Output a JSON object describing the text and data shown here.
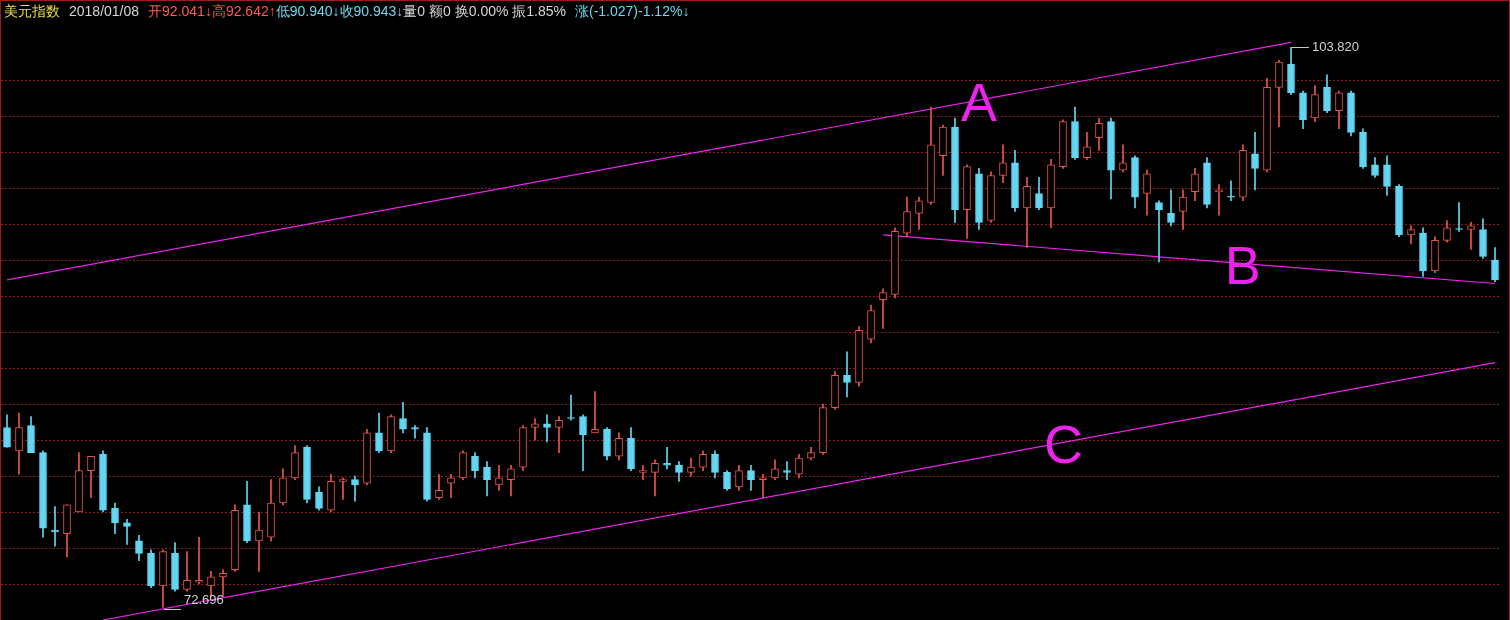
{
  "chart_data": {
    "type": "candlestick",
    "title": "美元指数",
    "annotations": [
      "2018/01/08",
      "开92.041↓高92.642↑",
      "低90.940↓收90.943↓",
      "量0 额0 换0.00% 振1.85%",
      "涨(-1.027)-1.12%↓",
      "103.820",
      "72.696"
    ],
    "categories": [
      null,
      null,
      null,
      null,
      null,
      null,
      null,
      null,
      null,
      null,
      null,
      null,
      null,
      null,
      null,
      null,
      null,
      null,
      null,
      null,
      null,
      null,
      null,
      null,
      null,
      null,
      null,
      null,
      null,
      null,
      null,
      null,
      null,
      null,
      null,
      null,
      null,
      null,
      null,
      null,
      null,
      null,
      null,
      null,
      null,
      null,
      null,
      null,
      null,
      null,
      null,
      null,
      null,
      null,
      null,
      null,
      null,
      null,
      null,
      null,
      null,
      null,
      null,
      null,
      null,
      null,
      null,
      null,
      null,
      null,
      null,
      null,
      null,
      null,
      null,
      null,
      null,
      null,
      null,
      null,
      null,
      null,
      null,
      null,
      null,
      null,
      null,
      null,
      null,
      null,
      null,
      null,
      null,
      null,
      null,
      null,
      null,
      null,
      null,
      null,
      null,
      null,
      null,
      null,
      null,
      null,
      null,
      null,
      null,
      null,
      null,
      null,
      null,
      null,
      null,
      null,
      null,
      null,
      null,
      null,
      null,
      null,
      null,
      null,
      null
    ],
    "ohlc": [
      [
        82.7,
        83.4,
        81.6,
        81.6
      ],
      [
        81.4,
        83.5,
        80.1,
        82.7
      ],
      [
        82.8,
        83.3,
        81.3,
        81.3
      ],
      [
        81.3,
        81.4,
        76.6,
        77.1
      ],
      [
        77.0,
        78.3,
        76.1,
        76.9
      ],
      [
        76.8,
        78.4,
        75.5,
        78.4
      ],
      [
        78.0,
        81.3,
        78.0,
        80.3
      ],
      [
        80.3,
        81.1,
        78.8,
        81.1
      ],
      [
        81.2,
        81.4,
        78.0,
        78.1
      ],
      [
        78.2,
        78.5,
        76.8,
        77.4
      ],
      [
        77.4,
        77.6,
        76.2,
        77.2
      ],
      [
        76.4,
        76.7,
        75.3,
        75.7
      ],
      [
        75.7,
        75.9,
        73.8,
        73.9
      ],
      [
        73.9,
        75.9,
        72.696,
        75.8
      ],
      [
        75.7,
        76.3,
        73.6,
        73.7
      ],
      [
        73.7,
        75.8,
        73.6,
        74.2
      ],
      [
        74.1,
        76.6,
        74.0,
        74.2
      ],
      [
        73.9,
        74.7,
        73.3,
        74.4
      ],
      [
        74.4,
        74.8,
        73.3,
        74.6
      ],
      [
        74.8,
        78.4,
        74.7,
        78.1
      ],
      [
        78.4,
        79.7,
        76.3,
        76.4
      ],
      [
        76.4,
        78.0,
        74.7,
        77.0
      ],
      [
        76.6,
        79.8,
        76.4,
        78.5
      ],
      [
        78.5,
        80.4,
        78.4,
        79.9
      ],
      [
        79.9,
        81.7,
        79.8,
        81.3
      ],
      [
        81.6,
        81.7,
        78.5,
        78.7
      ],
      [
        79.1,
        79.4,
        78.1,
        78.2
      ],
      [
        78.1,
        80.1,
        78.0,
        79.7
      ],
      [
        79.7,
        79.9,
        78.7,
        79.8
      ],
      [
        79.8,
        80.0,
        78.6,
        79.5
      ],
      [
        79.6,
        82.6,
        79.5,
        82.4
      ],
      [
        82.4,
        83.5,
        81.3,
        81.4
      ],
      [
        81.4,
        83.4,
        81.3,
        83.3
      ],
      [
        83.2,
        84.1,
        82.4,
        82.6
      ],
      [
        82.7,
        82.8,
        82.1,
        82.6
      ],
      [
        82.4,
        82.7,
        78.6,
        78.7
      ],
      [
        78.8,
        80.1,
        78.7,
        79.2
      ],
      [
        79.6,
        80.1,
        78.8,
        79.9
      ],
      [
        79.9,
        81.4,
        79.8,
        81.3
      ],
      [
        81.1,
        81.3,
        79.9,
        80.3
      ],
      [
        80.5,
        80.8,
        78.9,
        79.8
      ],
      [
        79.5,
        80.6,
        79.2,
        79.9
      ],
      [
        79.8,
        80.6,
        78.9,
        80.4
      ],
      [
        80.5,
        82.8,
        80.3,
        82.7
      ],
      [
        82.7,
        83.2,
        82.0,
        82.9
      ],
      [
        82.9,
        83.4,
        81.9,
        82.7
      ],
      [
        82.7,
        83.3,
        81.3,
        83.1
      ],
      [
        83.2,
        84.5,
        83.1,
        83.2
      ],
      [
        83.3,
        83.4,
        80.3,
        82.3
      ],
      [
        82.4,
        84.7,
        82.4,
        82.6
      ],
      [
        82.6,
        82.7,
        80.9,
        81.1
      ],
      [
        81.1,
        82.4,
        80.9,
        82.1
      ],
      [
        82.1,
        82.7,
        80.3,
        80.4
      ],
      [
        80.2,
        80.6,
        79.8,
        80.3
      ],
      [
        80.2,
        80.9,
        78.9,
        80.7
      ],
      [
        80.7,
        81.6,
        80.4,
        80.6
      ],
      [
        80.6,
        80.8,
        79.7,
        80.2
      ],
      [
        80.2,
        81.0,
        80.0,
        80.5
      ],
      [
        80.5,
        81.4,
        80.3,
        81.2
      ],
      [
        81.2,
        81.4,
        79.9,
        80.2
      ],
      [
        80.2,
        80.3,
        79.2,
        79.3
      ],
      [
        79.4,
        80.6,
        79.2,
        80.3
      ],
      [
        80.3,
        80.6,
        79.2,
        79.8
      ],
      [
        79.8,
        80.1,
        78.8,
        79.9
      ],
      [
        79.9,
        80.9,
        79.8,
        80.4
      ],
      [
        80.3,
        80.8,
        79.8,
        80.2
      ],
      [
        80.1,
        81.2,
        79.9,
        81.0
      ],
      [
        81.0,
        81.6,
        80.9,
        81.3
      ],
      [
        81.3,
        84.0,
        81.2,
        83.8
      ],
      [
        83.8,
        85.8,
        83.7,
        85.6
      ],
      [
        85.6,
        86.9,
        84.4,
        85.2
      ],
      [
        85.2,
        88.3,
        85.0,
        88.1
      ],
      [
        87.6,
        89.5,
        87.4,
        89.2
      ],
      [
        89.8,
        90.4,
        88.2,
        90.2
      ],
      [
        90.1,
        93.8,
        89.9,
        93.6
      ],
      [
        93.5,
        95.5,
        93.3,
        94.7
      ],
      [
        94.6,
        95.5,
        93.7,
        95.3
      ],
      [
        95.2,
        100.5,
        95.1,
        98.4
      ],
      [
        97.8,
        99.5,
        96.7,
        99.4
      ],
      [
        99.4,
        99.9,
        94.1,
        94.8
      ],
      [
        94.8,
        97.3,
        93.2,
        97.2
      ],
      [
        96.8,
        97.1,
        93.7,
        94.1
      ],
      [
        94.2,
        96.9,
        94.1,
        96.7
      ],
      [
        96.7,
        98.4,
        96.3,
        97.4
      ],
      [
        97.4,
        98.1,
        94.7,
        94.9
      ],
      [
        94.9,
        96.6,
        92.7,
        96.1
      ],
      [
        95.7,
        96.6,
        94.8,
        94.9
      ],
      [
        94.9,
        97.6,
        93.8,
        97.3
      ],
      [
        97.2,
        99.8,
        97.1,
        99.7
      ],
      [
        99.7,
        100.5,
        97.6,
        97.7
      ],
      [
        97.7,
        99.1,
        97.6,
        98.3
      ],
      [
        98.8,
        99.9,
        98.1,
        99.6
      ],
      [
        99.7,
        99.9,
        95.4,
        97.0
      ],
      [
        97.0,
        98.4,
        96.9,
        97.4
      ],
      [
        97.7,
        97.8,
        94.9,
        95.5
      ],
      [
        95.7,
        97.0,
        94.5,
        96.8
      ],
      [
        95.2,
        95.3,
        91.9,
        94.8
      ],
      [
        94.6,
        95.9,
        93.9,
        94.1
      ],
      [
        94.7,
        95.9,
        93.7,
        95.5
      ],
      [
        95.8,
        97.1,
        95.3,
        96.8
      ],
      [
        97.4,
        97.7,
        94.9,
        95.1
      ],
      [
        95.8,
        96.2,
        94.5,
        95.9
      ],
      [
        95.5,
        96.4,
        95.3,
        95.5
      ],
      [
        95.5,
        98.4,
        95.3,
        98.1
      ],
      [
        97.9,
        99.1,
        95.9,
        97.1
      ],
      [
        97.0,
        102.1,
        96.9,
        101.6
      ],
      [
        101.6,
        103.1,
        99.4,
        103.0
      ],
      [
        102.9,
        103.82,
        101.2,
        101.3
      ],
      [
        101.3,
        101.4,
        99.3,
        99.8
      ],
      [
        99.9,
        101.7,
        99.7,
        101.2
      ],
      [
        101.6,
        102.3,
        100.2,
        100.3
      ],
      [
        100.3,
        101.4,
        99.3,
        101.3
      ],
      [
        101.3,
        101.4,
        98.9,
        99.1
      ],
      [
        99.1,
        99.3,
        97.1,
        97.2
      ],
      [
        97.3,
        97.7,
        96.6,
        96.7
      ],
      [
        97.3,
        97.8,
        95.6,
        96.1
      ],
      [
        96.1,
        96.2,
        93.3,
        93.4
      ],
      [
        93.4,
        93.9,
        92.9,
        93.7
      ],
      [
        93.5,
        93.8,
        91.1,
        91.4
      ],
      [
        91.4,
        93.3,
        91.3,
        93.1
      ],
      [
        93.1,
        94.2,
        93.0,
        93.8
      ],
      [
        93.7,
        95.2,
        93.6,
        93.7
      ],
      [
        93.7,
        94.1,
        92.6,
        93.9
      ],
      [
        93.7,
        94.3,
        92.1,
        92.2
      ],
      [
        92.0,
        92.7,
        90.8,
        90.9
      ]
    ],
    "colors": [
      "#62d6f2",
      "#e8554e",
      "#62d6f2",
      "#62d6f2",
      "#62d6f2",
      "#e8554e",
      "#e8554e",
      "#e8554e",
      "#62d6f2",
      "#62d6f2",
      "#62d6f2",
      "#62d6f2",
      "#62d6f2",
      "#e8554e",
      "#62d6f2",
      "#e8554e",
      "#e8554e",
      "#e8554e",
      "#e8554e",
      "#e8554e",
      "#62d6f2",
      "#e8554e",
      "#e8554e",
      "#e8554e",
      "#e8554e",
      "#62d6f2",
      "#62d6f2",
      "#e8554e",
      "#e8554e",
      "#62d6f2",
      "#e8554e",
      "#62d6f2",
      "#e8554e",
      "#62d6f2",
      "#62d6f2",
      "#62d6f2",
      "#e8554e",
      "#e8554e",
      "#e8554e",
      "#62d6f2",
      "#62d6f2",
      "#e8554e",
      "#e8554e",
      "#e8554e",
      "#e8554e",
      "#62d6f2",
      "#e8554e",
      "#62d6f2",
      "#62d6f2",
      "#e8554e",
      "#62d6f2",
      "#e8554e",
      "#62d6f2",
      "#e8554e",
      "#e8554e",
      "#62d6f2",
      "#62d6f2",
      "#e8554e",
      "#e8554e",
      "#62d6f2",
      "#62d6f2",
      "#e8554e",
      "#62d6f2",
      "#e8554e",
      "#e8554e",
      "#62d6f2",
      "#e8554e",
      "#e8554e",
      "#e8554e",
      "#e8554e",
      "#62d6f2",
      "#e8554e",
      "#e8554e",
      "#e8554e",
      "#e8554e",
      "#e8554e",
      "#e8554e",
      "#e8554e",
      "#e8554e",
      "#62d6f2",
      "#e8554e",
      "#62d6f2",
      "#e8554e",
      "#e8554e",
      "#62d6f2",
      "#e8554e",
      "#62d6f2",
      "#e8554e",
      "#e8554e",
      "#62d6f2",
      "#e8554e",
      "#e8554e",
      "#62d6f2",
      "#e8554e",
      "#62d6f2",
      "#e8554e",
      "#62d6f2",
      "#62d6f2",
      "#e8554e",
      "#e8554e",
      "#62d6f2",
      "#e8554e",
      "#62d6f2",
      "#e8554e",
      "#62d6f2",
      "#e8554e",
      "#e8554e",
      "#62d6f2",
      "#62d6f2",
      "#e8554e",
      "#62d6f2",
      "#e8554e",
      "#62d6f2",
      "#62d6f2",
      "#62d6f2",
      "#62d6f2",
      "#62d6f2",
      "#e8554e",
      "#62d6f2",
      "#e8554e",
      "#e8554e",
      "#62d6f2",
      "#e8554e",
      "#62d6f2",
      "#62d6f2"
    ],
    "series": [
      {
        "type": "line",
        "name": "A",
        "color": "#ee22ee",
        "values": [
          90.9,
          null,
          null,
          null,
          null,
          null,
          null,
          null,
          null,
          null,
          null,
          null,
          null,
          null,
          null,
          null,
          null,
          null,
          null,
          null,
          null,
          null,
          null,
          null,
          null,
          null,
          null,
          null,
          null,
          null,
          null,
          null,
          null,
          null,
          null,
          null,
          null,
          null,
          null,
          null,
          null,
          null,
          null,
          null,
          null,
          null,
          null,
          null,
          null,
          null,
          null,
          null,
          null,
          null,
          null,
          null,
          null,
          null,
          null,
          null,
          null,
          null,
          null,
          null,
          null,
          null,
          null,
          null,
          null,
          null,
          null,
          null,
          null,
          null,
          null,
          null,
          null,
          null,
          null,
          null,
          null,
          null,
          null,
          null,
          null,
          null,
          null,
          null,
          null,
          null,
          null,
          null,
          null,
          null,
          null,
          null,
          null,
          null,
          null,
          null,
          null,
          null,
          null,
          null,
          null,
          null,
          null,
          104.1,
          null,
          null,
          null,
          null,
          null,
          null,
          null,
          null,
          null,
          null,
          null,
          null,
          null,
          null,
          null,
          null,
          null
        ]
      },
      {
        "type": "line",
        "name": "B",
        "color": "#ee22ee",
        "values": [
          null,
          null,
          null,
          null,
          null,
          null,
          null,
          null,
          null,
          null,
          null,
          null,
          null,
          null,
          null,
          null,
          null,
          null,
          null,
          null,
          null,
          null,
          null,
          null,
          null,
          null,
          null,
          null,
          null,
          null,
          null,
          null,
          null,
          null,
          null,
          null,
          null,
          null,
          null,
          null,
          null,
          null,
          null,
          null,
          null,
          null,
          null,
          null,
          null,
          null,
          null,
          null,
          null,
          null,
          null,
          null,
          null,
          null,
          null,
          null,
          null,
          null,
          null,
          null,
          null,
          null,
          null,
          null,
          null,
          null,
          null,
          null,
          null,
          93.4,
          null,
          null,
          null,
          null,
          null,
          null,
          null,
          null,
          null,
          null,
          null,
          null,
          null,
          null,
          null,
          null,
          null,
          null,
          null,
          null,
          null,
          null,
          null,
          null,
          null,
          null,
          null,
          null,
          null,
          null,
          null,
          null,
          null,
          null,
          null,
          null,
          null,
          null,
          null,
          null,
          null,
          null,
          null,
          null,
          null,
          null,
          null,
          null,
          null,
          null,
          90.7
        ]
      },
      {
        "type": "line",
        "name": "C",
        "color": "#ee22ee",
        "values": [
          null,
          null,
          null,
          null,
          null,
          null,
          null,
          null,
          72,
          null,
          null,
          null,
          null,
          null,
          null,
          null,
          null,
          null,
          null,
          null,
          null,
          null,
          null,
          null,
          null,
          null,
          null,
          null,
          null,
          null,
          null,
          null,
          null,
          null,
          null,
          null,
          null,
          null,
          null,
          null,
          null,
          null,
          null,
          null,
          null,
          null,
          null,
          null,
          null,
          null,
          null,
          null,
          null,
          null,
          null,
          null,
          null,
          null,
          null,
          null,
          null,
          null,
          null,
          null,
          null,
          null,
          null,
          null,
          null,
          null,
          null,
          null,
          null,
          null,
          null,
          null,
          null,
          null,
          null,
          null,
          null,
          null,
          null,
          null,
          null,
          null,
          null,
          null,
          null,
          null,
          null,
          null,
          null,
          null,
          null,
          null,
          null,
          null,
          null,
          null,
          null,
          null,
          null,
          null,
          null,
          null,
          null,
          null,
          null,
          null,
          null,
          null,
          null,
          null,
          null,
          null,
          null,
          null,
          null,
          null,
          null,
          null,
          null,
          null,
          86.3
        ]
      }
    ],
    "ylim": [
      72,
      106.4
    ],
    "yticks": [
      {
        "value": 74,
        "label": null
      },
      {
        "value": 76,
        "label": null
      },
      {
        "value": 78,
        "label": null
      },
      {
        "value": 80,
        "label": null
      },
      {
        "value": 82,
        "label": null
      },
      {
        "value": 84,
        "label": null
      },
      {
        "value": 86,
        "label": null
      },
      {
        "value": 88,
        "label": null
      },
      {
        "value": 90,
        "label": null
      },
      {
        "value": 92,
        "label": null
      },
      {
        "value": 94,
        "label": null
      },
      {
        "value": 96,
        "label": null
      },
      {
        "value": 98,
        "label": null
      },
      {
        "value": 100,
        "label": null
      },
      {
        "value": 102,
        "label": null
      }
    ],
    "grid": "y",
    "tick_labels": false
  }
}
